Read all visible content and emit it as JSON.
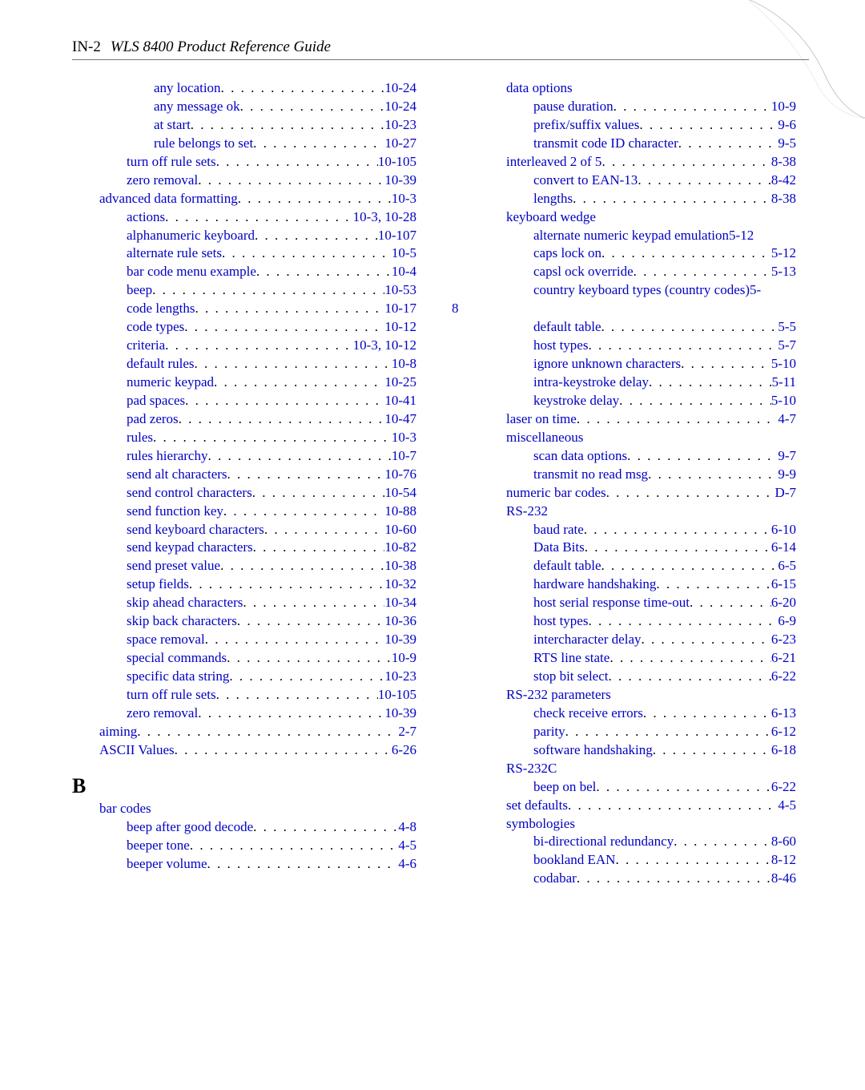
{
  "header": {
    "pagenum": "IN-2",
    "title": "WLS 8400 Product Reference Guide"
  },
  "colors": {
    "link": "#0000c4",
    "text": "#000000",
    "rule": "#777777",
    "bg": "#ffffff"
  },
  "font": {
    "family": "Times New Roman",
    "size_pt": 12,
    "heading_size_pt": 20
  },
  "section_B": "B",
  "left": [
    {
      "indent": 3,
      "label": "any location",
      "pages": "10-24"
    },
    {
      "indent": 3,
      "label": "any message ok",
      "pages": "10-24"
    },
    {
      "indent": 3,
      "label": "at start",
      "pages": "10-23"
    },
    {
      "indent": 3,
      "label": "rule belongs to set",
      "pages": "10-27"
    },
    {
      "indent": 2,
      "label": "turn off rule sets",
      "pages": "10-105"
    },
    {
      "indent": 2,
      "label": "zero removal",
      "pages": "10-39"
    },
    {
      "indent": 1,
      "label": "advanced data formatting",
      "pages": "10-3"
    },
    {
      "indent": 2,
      "label": "actions",
      "pages": "10-3, 10-28"
    },
    {
      "indent": 2,
      "label": "alphanumeric keyboard",
      "pages": "10-107"
    },
    {
      "indent": 2,
      "label": "alternate rule sets",
      "pages": "10-5"
    },
    {
      "indent": 2,
      "label": "bar code menu example",
      "pages": "10-4"
    },
    {
      "indent": 2,
      "label": "beep",
      "pages": "10-53"
    },
    {
      "indent": 2,
      "label": "code lengths",
      "pages": "10-17"
    },
    {
      "indent": 2,
      "label": "code types",
      "pages": "10-12"
    },
    {
      "indent": 2,
      "label": "criteria",
      "pages": "10-3, 10-12"
    },
    {
      "indent": 2,
      "label": "default rules",
      "pages": "10-8"
    },
    {
      "indent": 2,
      "label": "numeric keypad",
      "pages": "10-25"
    },
    {
      "indent": 2,
      "label": "pad spaces",
      "pages": "10-41"
    },
    {
      "indent": 2,
      "label": "pad zeros",
      "pages": "10-47"
    },
    {
      "indent": 2,
      "label": "rules",
      "pages": "10-3"
    },
    {
      "indent": 2,
      "label": "rules hierarchy",
      "pages": "10-7"
    },
    {
      "indent": 2,
      "label": "send alt characters",
      "pages": "10-76"
    },
    {
      "indent": 2,
      "label": "send control characters",
      "pages": "10-54"
    },
    {
      "indent": 2,
      "label": "send function key",
      "pages": "10-88"
    },
    {
      "indent": 2,
      "label": "send keyboard characters",
      "pages": "10-60"
    },
    {
      "indent": 2,
      "label": "send keypad characters",
      "pages": "10-82"
    },
    {
      "indent": 2,
      "label": "send preset value",
      "pages": "10-38"
    },
    {
      "indent": 2,
      "label": "setup fields",
      "pages": "10-32"
    },
    {
      "indent": 2,
      "label": "skip ahead characters",
      "pages": "10-34"
    },
    {
      "indent": 2,
      "label": "skip back characters",
      "pages": "10-36"
    },
    {
      "indent": 2,
      "label": "space removal",
      "pages": "10-39"
    },
    {
      "indent": 2,
      "label": "special commands",
      "pages": "10-9"
    },
    {
      "indent": 2,
      "label": "specific data string",
      "pages": "10-23"
    },
    {
      "indent": 2,
      "label": "turn off rule sets",
      "pages": "10-105"
    },
    {
      "indent": 2,
      "label": "zero removal",
      "pages": "10-39"
    },
    {
      "indent": 1,
      "label": "aiming",
      "pages": "2-7"
    },
    {
      "indent": 1,
      "label": "ASCII Values",
      "pages": "6-26"
    }
  ],
  "leftB": [
    {
      "indent": 1,
      "label": "bar codes",
      "pages": "",
      "nopages": true
    },
    {
      "indent": 2,
      "label": "beep after good decode",
      "pages": "4-8"
    },
    {
      "indent": 2,
      "label": "beeper tone",
      "pages": "4-5"
    },
    {
      "indent": 2,
      "label": "beeper volume",
      "pages": "4-6"
    }
  ],
  "right": [
    {
      "indent": 2,
      "label": "data options",
      "pages": "",
      "nopages": true
    },
    {
      "indent": 3,
      "label": "pause duration",
      "pages": "10-9"
    },
    {
      "indent": 3,
      "label": "prefix/suffix values",
      "pages": "9-6"
    },
    {
      "indent": 3,
      "label": "transmit code ID character",
      "pages": "9-5"
    },
    {
      "indent": 2,
      "label": "interleaved 2 of 5",
      "pages": "8-38"
    },
    {
      "indent": 3,
      "label": "convert to EAN-13",
      "pages": "8-42"
    },
    {
      "indent": 3,
      "label": "lengths",
      "pages": "8-38"
    },
    {
      "indent": 2,
      "label": "keyboard wedge",
      "pages": "",
      "nopages": true
    },
    {
      "indent": 3,
      "label": "alternate numeric keypad emulation",
      "pages": "5-12",
      "tight": true
    },
    {
      "indent": 3,
      "label": "caps lock on",
      "pages": "5-12"
    },
    {
      "indent": 3,
      "label": "capsl ock override",
      "pages": "5-13"
    },
    {
      "indent": 3,
      "label": "country keyboard types (country codes)",
      "pages": "5-",
      "tight": true
    },
    {
      "indent": 0,
      "label": "8",
      "pages": "",
      "raw8": true
    },
    {
      "indent": 3,
      "label": "default table",
      "pages": "5-5"
    },
    {
      "indent": 3,
      "label": "host types",
      "pages": "5-7"
    },
    {
      "indent": 3,
      "label": "ignore unknown characters",
      "pages": "5-10"
    },
    {
      "indent": 3,
      "label": "intra-keystroke delay",
      "pages": "5-11"
    },
    {
      "indent": 3,
      "label": "keystroke delay",
      "pages": "5-10"
    },
    {
      "indent": 2,
      "label": "laser on time",
      "pages": "4-7"
    },
    {
      "indent": 2,
      "label": "miscellaneous",
      "pages": "",
      "nopages": true
    },
    {
      "indent": 3,
      "label": "scan data options",
      "pages": "9-7"
    },
    {
      "indent": 3,
      "label": "transmit no read msg",
      "pages": "9-9"
    },
    {
      "indent": 2,
      "label": "numeric bar codes",
      "pages": "D-7"
    },
    {
      "indent": 2,
      "label": "RS-232",
      "pages": "",
      "nopages": true
    },
    {
      "indent": 3,
      "label": "baud rate",
      "pages": "6-10"
    },
    {
      "indent": 3,
      "label": "Data Bits",
      "pages": "6-14"
    },
    {
      "indent": 3,
      "label": "default table",
      "pages": "6-5"
    },
    {
      "indent": 3,
      "label": "hardware handshaking",
      "pages": "6-15"
    },
    {
      "indent": 3,
      "label": "host serial response time-out",
      "pages": "6-20"
    },
    {
      "indent": 3,
      "label": "host types",
      "pages": "6-9"
    },
    {
      "indent": 3,
      "label": "intercharacter delay",
      "pages": "6-23"
    },
    {
      "indent": 3,
      "label": "RTS line state",
      "pages": "6-21"
    },
    {
      "indent": 3,
      "label": "stop bit select",
      "pages": "6-22"
    },
    {
      "indent": 2,
      "label": "RS-232 parameters",
      "pages": "",
      "nopages": true
    },
    {
      "indent": 3,
      "label": "check receive errors",
      "pages": "6-13"
    },
    {
      "indent": 3,
      "label": "parity",
      "pages": "6-12"
    },
    {
      "indent": 3,
      "label": "software handshaking",
      "pages": "6-18"
    },
    {
      "indent": 2,
      "label": "RS-232C",
      "pages": "",
      "nopages": true
    },
    {
      "indent": 3,
      "label": "beep on bel",
      "pages": "6-22"
    },
    {
      "indent": 2,
      "label": "set defaults",
      "pages": "4-5"
    },
    {
      "indent": 2,
      "label": "symbologies",
      "pages": "",
      "nopages": true
    },
    {
      "indent": 3,
      "label": "bi-directional redundancy",
      "pages": "8-60"
    },
    {
      "indent": 3,
      "label": "bookland EAN",
      "pages": "8-12"
    },
    {
      "indent": 3,
      "label": "codabar",
      "pages": "8-46"
    }
  ]
}
